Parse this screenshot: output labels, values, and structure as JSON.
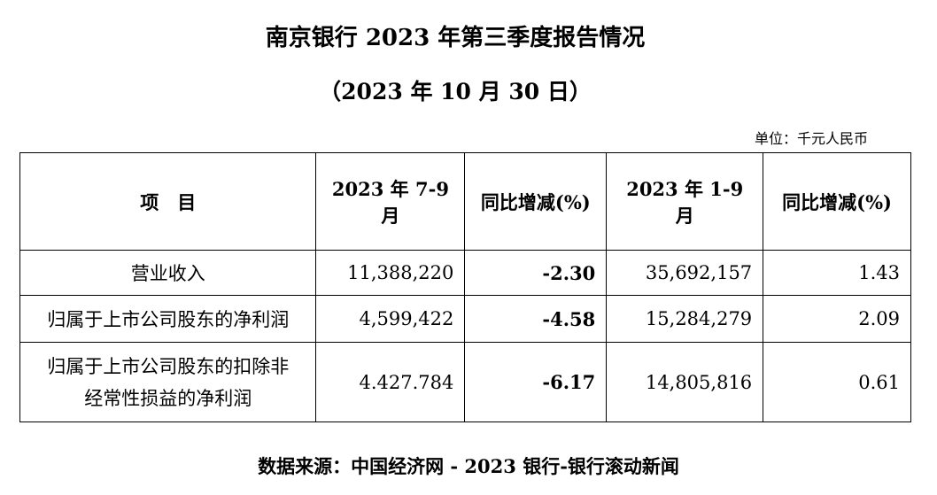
{
  "header": {
    "title": "南京银行 2023 年第三季度报告情况",
    "subtitle": "（2023 年 10 月 30 日）",
    "unit": "单位：千元人民币"
  },
  "table": {
    "columns": [
      "项　目",
      "2023 年 7-9 月",
      "同比增减(%)",
      "2023 年 1-9 月",
      "同比增减(%)"
    ],
    "rows": [
      [
        [
          "营业收入"
        ],
        "11,388,220",
        "-2.30",
        "35,692,157",
        "1.43"
      ],
      [
        [
          "归属于上市公司股东的净利润"
        ],
        "4,599,422",
        "-4.58",
        "15,284,279",
        "2.09"
      ],
      [
        [
          "归属于上市公司股东的扣除非",
          "经常性损益的净利润"
        ],
        "4.427.784",
        "-6.17",
        "14,805,816",
        "0.61"
      ]
    ]
  },
  "footer": {
    "source": "数据来源：中国经济网 - 2023 银行-银行滚动新闻"
  }
}
